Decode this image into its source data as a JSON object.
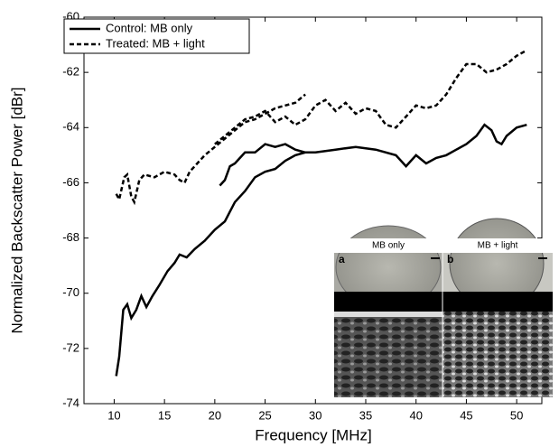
{
  "chart_data": {
    "type": "line",
    "xlabel": "Frequency [MHz]",
    "ylabel": "Normalized Backscatter Power [dBr]",
    "xlim": [
      7,
      52.5
    ],
    "ylim": [
      -74,
      -60
    ],
    "xticks": [
      10,
      15,
      20,
      25,
      30,
      35,
      40,
      45,
      50
    ],
    "yticks": [
      -74,
      -72,
      -70,
      -68,
      -66,
      -64,
      -62,
      -60
    ],
    "legend": "upper left",
    "series": [
      {
        "name": "Control: MB only",
        "color": "#000000",
        "line_style": "solid",
        "x": [
          10.2,
          10.5,
          10.9,
          11.3,
          11.7,
          12.2,
          12.7,
          13.2,
          13.8,
          14.5,
          15.3,
          16,
          16.5,
          17.2,
          18,
          19,
          20,
          21,
          22,
          23,
          24,
          25,
          26,
          27,
          28,
          29,
          30,
          32,
          34,
          36,
          38,
          39,
          40,
          41,
          42,
          43,
          44,
          45,
          46,
          46.8,
          47.5,
          48,
          48.5,
          49,
          50,
          51,
          null,
          20.5,
          21,
          21.5,
          22,
          22.5,
          23,
          24,
          25,
          26,
          27,
          28,
          29
        ],
        "values": [
          -73,
          -72.3,
          -70.6,
          -70.4,
          -70.9,
          -70.6,
          -70.1,
          -70.5,
          -70.1,
          -69.7,
          -69.2,
          -68.9,
          -68.6,
          -68.7,
          -68.4,
          -68.1,
          -67.7,
          -67.4,
          -66.7,
          -66.3,
          -65.8,
          -65.6,
          -65.5,
          -65.2,
          -65,
          -64.9,
          -64.9,
          -64.8,
          -64.7,
          -64.8,
          -65,
          -65.4,
          -65,
          -65.3,
          -65.1,
          -65,
          -64.8,
          -64.6,
          -64.3,
          -63.9,
          -64.1,
          -64.5,
          -64.6,
          -64.3,
          -64,
          -63.9,
          null,
          -66.1,
          -65.9,
          -65.4,
          -65.3,
          -65.1,
          -64.9,
          -64.9,
          -64.6,
          -64.7,
          -64.6,
          -64.8,
          -64.9
        ]
      },
      {
        "name": "Treated: MB + light",
        "color": "#000000",
        "line_style": "dashed",
        "x": [
          10.2,
          10.5,
          11,
          11.3,
          11.7,
          12,
          12.5,
          13,
          14,
          15,
          16,
          16.5,
          17,
          17.5,
          18,
          19,
          20,
          21,
          22,
          23,
          24,
          25,
          26,
          27,
          28,
          29,
          null,
          20,
          21,
          22,
          23,
          24,
          25,
          26,
          27,
          28,
          29,
          30,
          31,
          32,
          33,
          34,
          35,
          36,
          37,
          38,
          39,
          40,
          41,
          42,
          43,
          44,
          45,
          46,
          47,
          48,
          49,
          50,
          51
        ],
        "values": [
          -66.4,
          -66.6,
          -65.8,
          -65.7,
          -66.5,
          -66.7,
          -65.9,
          -65.7,
          -65.8,
          -65.6,
          -65.7,
          -65.9,
          -66,
          -65.6,
          -65.4,
          -65,
          -64.7,
          -64.4,
          -64.1,
          -63.8,
          -63.7,
          -63.5,
          -63.3,
          -63.2,
          -63.1,
          -62.8,
          null,
          -64.6,
          -64.3,
          -64,
          -63.7,
          -63.6,
          -63.4,
          -63.8,
          -63.6,
          -63.9,
          -63.7,
          -63.2,
          -63,
          -63.4,
          -63.1,
          -63.5,
          -63.3,
          -63.4,
          -63.9,
          -64,
          -63.6,
          -63.2,
          -63.3,
          -63.2,
          -62.8,
          -62.2,
          -61.7,
          -61.7,
          -62,
          -61.9,
          -61.7,
          -61.4,
          -61.2
        ]
      }
    ],
    "inset": {
      "titles": [
        "MB only",
        "MB + light"
      ],
      "panels": [
        "a",
        "b"
      ]
    }
  }
}
